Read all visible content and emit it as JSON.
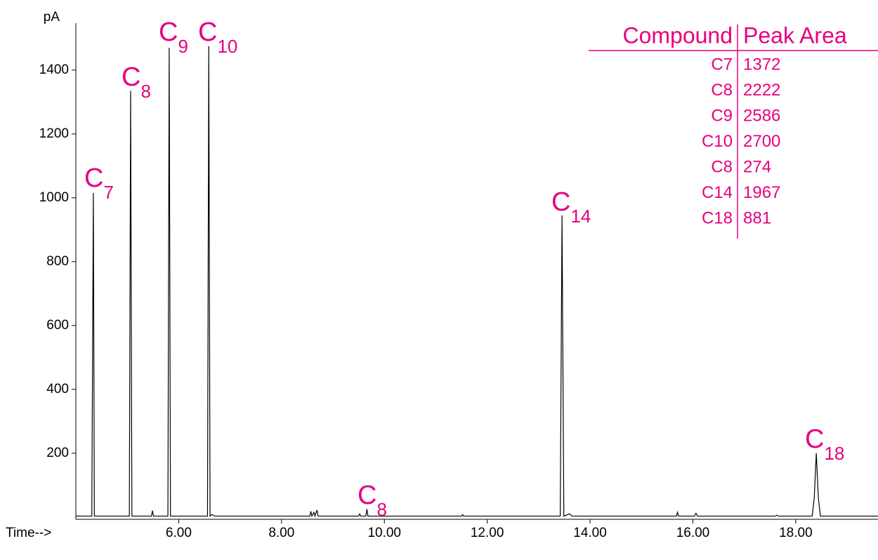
{
  "chart_data": {
    "type": "line",
    "y_label": "pA",
    "x_label": "Time-->",
    "color": "#000000",
    "accent_color": "#e6007e",
    "xlim": [
      4.0,
      19.6
    ],
    "ylim": [
      -7,
      1547
    ],
    "xticks": [
      {
        "value": 6,
        "label": "6.00"
      },
      {
        "value": 8,
        "label": "8.00"
      },
      {
        "value": 10,
        "label": "10.00"
      },
      {
        "value": 12,
        "label": "12.00"
      },
      {
        "value": 14,
        "label": "14.00"
      },
      {
        "value": 16,
        "label": "16.00"
      },
      {
        "value": 18,
        "label": "18.00"
      }
    ],
    "yticks": [
      200,
      400,
      600,
      800,
      1000,
      1200,
      1400
    ],
    "x": [
      4.0,
      4.31,
      4.34,
      4.36,
      5.04,
      5.065,
      5.09,
      5.47,
      5.49,
      5.51,
      5.79,
      5.815,
      5.84,
      6.56,
      6.585,
      6.61,
      6.65,
      6.7,
      8.55,
      8.57,
      8.59,
      8.63,
      8.65,
      8.69,
      8.71,
      9.5,
      9.52,
      9.54,
      9.64,
      9.66,
      9.68,
      11.5,
      11.52,
      11.54,
      13.42,
      13.455,
      13.49,
      13.6,
      13.65,
      15.68,
      15.7,
      15.72,
      16.03,
      16.06,
      16.09,
      17.6,
      17.63,
      17.66,
      18.32,
      18.36,
      18.4,
      18.44,
      18.48,
      19.6
    ],
    "values": [
      3,
      3,
      1015,
      3,
      3,
      1335,
      3,
      3,
      20,
      3,
      3,
      1470,
      3,
      3,
      1475,
      3,
      8,
      3,
      3,
      18,
      3,
      15,
      3,
      22,
      3,
      3,
      10,
      3,
      3,
      25,
      3,
      3,
      8,
      3,
      3,
      945,
      3,
      10,
      3,
      3,
      15,
      3,
      3,
      12,
      3,
      3,
      6,
      3,
      3,
      60,
      200,
      60,
      3,
      3
    ],
    "annotations": [
      {
        "text": "C",
        "sub": "7"
      },
      {
        "text": "C",
        "sub": "8"
      },
      {
        "text": "C",
        "sub": "9"
      },
      {
        "text": "C",
        "sub": "10"
      },
      {
        "text": "C",
        "sub": "8"
      },
      {
        "text": "C",
        "sub": "14"
      },
      {
        "text": "C",
        "sub": "18"
      }
    ],
    "table": {
      "header": [
        "Compound",
        "Peak Area"
      ],
      "rows": [
        [
          "C7",
          1372
        ],
        [
          "C8",
          2222
        ],
        [
          "C9",
          2586
        ],
        [
          "C10",
          2700
        ],
        [
          "C8",
          274
        ],
        [
          "C14",
          1967
        ],
        [
          "C18",
          881
        ]
      ]
    }
  }
}
